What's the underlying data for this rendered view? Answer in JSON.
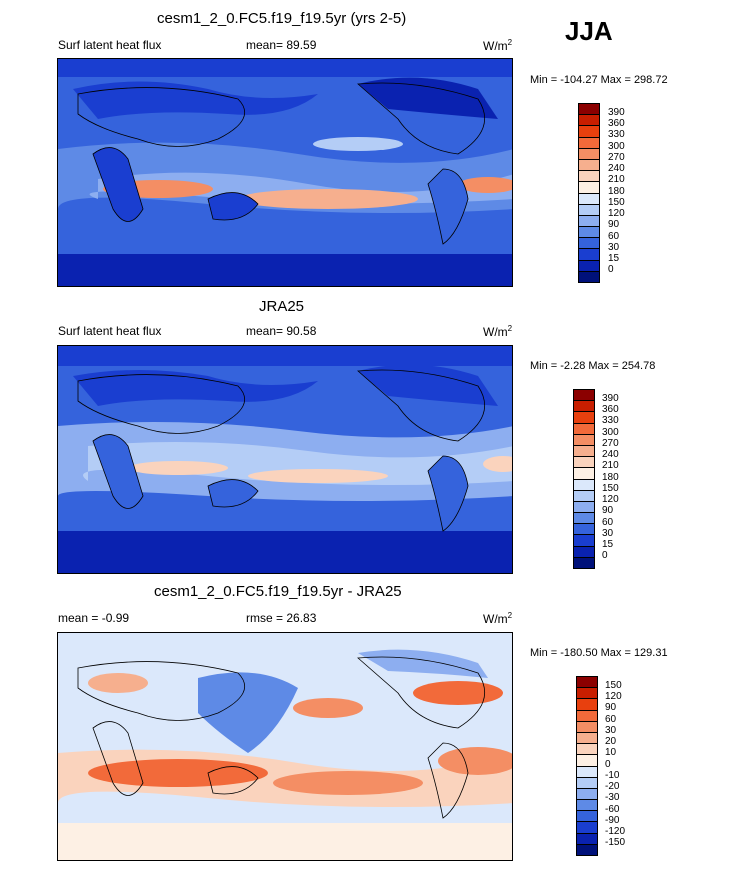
{
  "header": {
    "season": "JJA"
  },
  "panels": [
    {
      "title": "cesm1_2_0.FC5.f19_f19.5yr (yrs 2-5)",
      "left_label": "Surf latent heat flux",
      "stat_label": "mean=  89.59",
      "units": "W/m",
      "units_sup": "2",
      "minmax": "Min = -104.27 Max = 298.72",
      "colorbar": {
        "labels": [
          "390",
          "360",
          "330",
          "300",
          "270",
          "240",
          "210",
          "180",
          "150",
          "120",
          "90",
          "60",
          "30",
          "15",
          "0"
        ],
        "colors": [
          "#8b0000",
          "#c81e00",
          "#e8400e",
          "#f26a3a",
          "#f48e64",
          "#f6af8e",
          "#fad3bd",
          "#fdf0e4",
          "#dbe8fb",
          "#b4cdf6",
          "#8daef0",
          "#5e8ae6",
          "#3563dc",
          "#1a3ed0",
          "#0a22b0",
          "#00117a"
        ]
      }
    },
    {
      "title": "JRA25",
      "left_label": "Surf latent heat flux",
      "stat_label": "mean=  90.58",
      "units": "W/m",
      "units_sup": "2",
      "minmax": "Min =  -2.28 Max = 254.78",
      "colorbar": {
        "labels": [
          "390",
          "360",
          "330",
          "300",
          "270",
          "240",
          "210",
          "180",
          "150",
          "120",
          "90",
          "60",
          "30",
          "15",
          "0"
        ],
        "colors": [
          "#8b0000",
          "#c81e00",
          "#e8400e",
          "#f26a3a",
          "#f48e64",
          "#f6af8e",
          "#fad3bd",
          "#fdf0e4",
          "#dbe8fb",
          "#b4cdf6",
          "#8daef0",
          "#5e8ae6",
          "#3563dc",
          "#1a3ed0",
          "#0a22b0",
          "#00117a"
        ]
      }
    },
    {
      "title": "cesm1_2_0.FC5.f19_f19.5yr - JRA25",
      "left_label": "mean =  -0.99",
      "stat_label": "rmse =  26.83",
      "units": "W/m",
      "units_sup": "2",
      "minmax": "Min = -180.50 Max = 129.31",
      "colorbar": {
        "labels": [
          "150",
          "120",
          "90",
          "60",
          "30",
          "20",
          "10",
          "0",
          "-10",
          "-20",
          "-30",
          "-60",
          "-90",
          "-120",
          "-150"
        ],
        "colors": [
          "#8b0000",
          "#c81e00",
          "#e8400e",
          "#f26a3a",
          "#f48e64",
          "#f6af8e",
          "#fad3bd",
          "#fdf0e4",
          "#dbe8fb",
          "#b4cdf6",
          "#8daef0",
          "#5e8ae6",
          "#3563dc",
          "#1a3ed0",
          "#0a22b0",
          "#00117a"
        ]
      }
    }
  ]
}
